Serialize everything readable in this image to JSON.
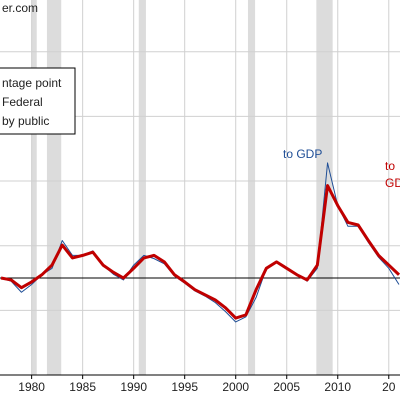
{
  "chart_data": {
    "type": "line",
    "watermark": "er.com",
    "legend_lines": [
      "ntage point",
      "Federal",
      "by public"
    ],
    "annotations": [
      {
        "text": "to GDP",
        "color": "#1f4e96"
      },
      {
        "text": "to",
        "color": "#c00000"
      },
      {
        "text": "GD",
        "color": "#c00000"
      }
    ],
    "x": [
      1977,
      1978,
      1979,
      1980,
      1981,
      1982,
      1983,
      1984,
      1985,
      1986,
      1987,
      1988,
      1989,
      1990,
      1991,
      1992,
      1993,
      1994,
      1995,
      1996,
      1997,
      1998,
      1999,
      2000,
      2001,
      2002,
      2003,
      2004,
      2005,
      2006,
      2007,
      2008,
      2009,
      2010,
      2011,
      2012,
      2013,
      2014,
      2015,
      2016
    ],
    "series": [
      {
        "color": "#1f4e96",
        "width": 1,
        "values": [
          0,
          -0.05,
          -0.22,
          -0.1,
          0.05,
          0.15,
          0.58,
          0.35,
          0.35,
          0.42,
          0.2,
          0.06,
          -0.03,
          0.2,
          0.35,
          0.3,
          0.22,
          0.03,
          -0.08,
          -0.2,
          -0.28,
          -0.38,
          -0.52,
          -0.68,
          -0.6,
          -0.3,
          0.15,
          0.25,
          0.15,
          0.06,
          -0.05,
          0.15,
          1.78,
          1.12,
          0.8,
          0.8,
          0.55,
          0.32,
          0.15,
          -0.1
        ]
      },
      {
        "color": "#c00000",
        "width": 3,
        "values": [
          0,
          -0.03,
          -0.15,
          -0.06,
          0.05,
          0.2,
          0.51,
          0.31,
          0.35,
          0.4,
          0.2,
          0.09,
          0,
          0.15,
          0.31,
          0.35,
          0.25,
          0.05,
          -0.06,
          -0.18,
          -0.26,
          -0.34,
          -0.46,
          -0.62,
          -0.57,
          -0.18,
          0.15,
          0.25,
          0.15,
          0.05,
          -0.03,
          0.2,
          1.43,
          1.12,
          0.86,
          0.82,
          0.58,
          0.35,
          0.2,
          0.05
        ]
      }
    ],
    "recessions": [
      [
        1980.0,
        1980.5
      ],
      [
        1981.5,
        1982.9
      ],
      [
        1990.5,
        1991.2
      ],
      [
        2001.2,
        2001.9
      ],
      [
        2007.9,
        2009.5
      ]
    ],
    "xlim": [
      1976.9,
      2016.1
    ],
    "xticks": [
      1980,
      1985,
      1990,
      1995,
      2000,
      2005,
      2010,
      {
        "value": 2015,
        "label": "20"
      }
    ],
    "ylim": [
      -1.5,
      4.3
    ],
    "yticks": [
      -0.5,
      0.5,
      1.5,
      2.5,
      3.5
    ],
    "hline": 0,
    "grid": true
  }
}
